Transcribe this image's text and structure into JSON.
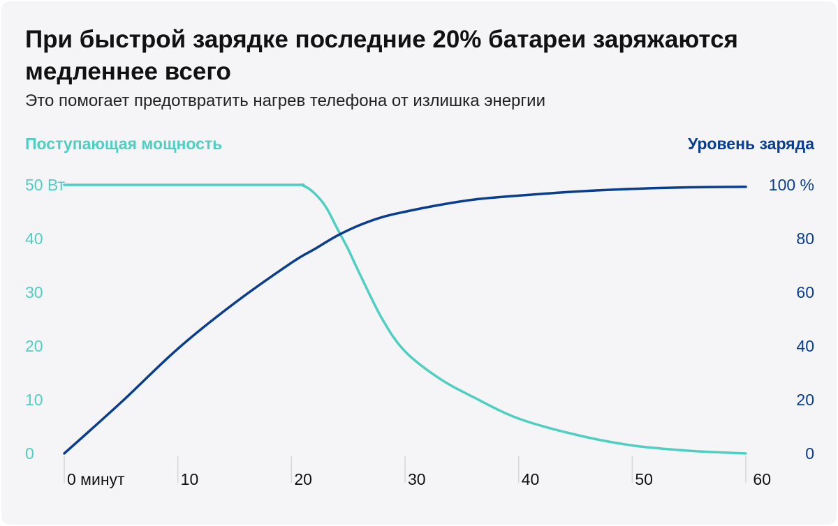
{
  "chart_data": {
    "type": "line",
    "title": "При быстрой зарядке последние 20% батареи заряжаются медленнее всего",
    "subtitle": "Это помогает предотвратить нагрев телефона от излишка энергии",
    "y_left_label": "Поступающая мощность",
    "y_right_label": "Уровень заряда",
    "x_ticks": [
      "0 минут",
      "10",
      "20",
      "30",
      "40",
      "50",
      "60"
    ],
    "x_tick_values": [
      0,
      10,
      20,
      30,
      40,
      50,
      60
    ],
    "y_left_ticks": [
      "0",
      "10",
      "20",
      "30",
      "40",
      "50 Вт"
    ],
    "y_left_tick_values": [
      0,
      10,
      20,
      30,
      40,
      50
    ],
    "y_right_ticks": [
      "0",
      "20",
      "40",
      "60",
      "80",
      "100 %"
    ],
    "y_right_tick_values": [
      0,
      20,
      40,
      60,
      80,
      100
    ],
    "xlim": [
      0,
      60
    ],
    "ylim_left": [
      0,
      50
    ],
    "ylim_right": [
      0,
      100
    ],
    "colors": {
      "power": "#4fcfc2",
      "charge": "#083d8f",
      "grid": "#d6d6d8"
    },
    "series": [
      {
        "name": "Поступающая мощность",
        "axis": "left",
        "x": [
          0,
          10,
          20,
          21,
          22,
          23,
          24,
          25,
          26,
          28,
          30,
          33,
          36,
          40,
          45,
          50,
          55,
          60
        ],
        "values": [
          50,
          50,
          50,
          49.9,
          48.5,
          46,
          42,
          38,
          33.5,
          25,
          19,
          14,
          10.5,
          6.5,
          3.5,
          1.5,
          0.5,
          0
        ]
      },
      {
        "name": "Уровень заряда",
        "axis": "right",
        "x": [
          0,
          5,
          10,
          15,
          20,
          22,
          24,
          26,
          28,
          30,
          33,
          36,
          40,
          45,
          50,
          55,
          60
        ],
        "values": [
          0,
          19,
          39,
          56,
          71,
          76,
          81,
          85,
          88,
          90,
          92.5,
          94.5,
          96,
          97.5,
          98.5,
          99.1,
          99.3
        ]
      }
    ]
  }
}
